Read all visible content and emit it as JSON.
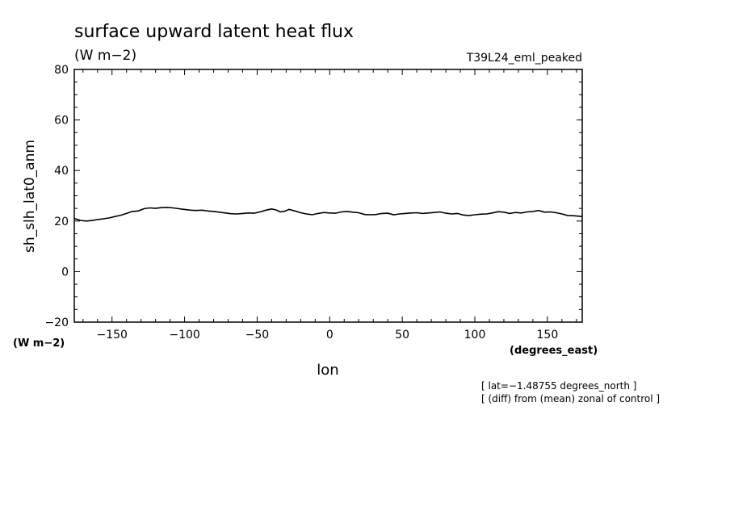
{
  "chart_data": {
    "type": "line",
    "title": "surface upward latent heat flux",
    "title_units": "(W m−2)",
    "run_label": "T39L24_eml_peaked",
    "ylabel": "sh_slh_lat0_anm",
    "y_units": "(W m−2)",
    "xlabel": "lon",
    "x_units": "(degrees_east)",
    "xlim": [
      -176,
      174
    ],
    "ylim": [
      -20,
      80
    ],
    "x_ticks": [
      -150,
      -100,
      -50,
      0,
      50,
      100,
      150
    ],
    "x_tick_labels": [
      "−150",
      "−100",
      "−50",
      "0",
      "50",
      "100",
      "150"
    ],
    "y_ticks": [
      -20,
      0,
      20,
      40,
      60,
      80
    ],
    "y_tick_labels": [
      "−20",
      "0",
      "20",
      "40",
      "60",
      "80"
    ],
    "notes": [
      "[ lat=−1.48755 degrees_north ]",
      "[ (diff) from (mean) zonal of control ]"
    ],
    "series": [
      {
        "x": [
          -176,
          -172,
          -168,
          -164,
          -160,
          -156,
          -152,
          -148,
          -144,
          -140,
          -136,
          -132,
          -128,
          -124,
          -120,
          -116,
          -112,
          -108,
          -104,
          -100,
          -96,
          -92,
          -88,
          -84,
          -80,
          -76,
          -72,
          -68,
          -64,
          -60,
          -56,
          -52,
          -48,
          -44,
          -40,
          -37,
          -34,
          -31,
          -28,
          -24,
          -20,
          -16,
          -12,
          -8,
          -4,
          0,
          4,
          8,
          12,
          16,
          20,
          24,
          28,
          32,
          36,
          40,
          44,
          48,
          52,
          56,
          60,
          64,
          68,
          72,
          76,
          80,
          84,
          88,
          92,
          96,
          100,
          104,
          108,
          112,
          116,
          120,
          124,
          128,
          132,
          136,
          140,
          144,
          148,
          152,
          156,
          160,
          164,
          168,
          174
        ],
        "y": [
          21.0,
          20.3,
          20.0,
          20.2,
          20.6,
          20.9,
          21.2,
          21.8,
          22.3,
          23.0,
          23.8,
          24.0,
          24.9,
          25.2,
          25.0,
          25.3,
          25.4,
          25.2,
          24.9,
          24.6,
          24.3,
          24.2,
          24.3,
          24.0,
          23.8,
          23.5,
          23.2,
          22.9,
          22.8,
          23.0,
          23.2,
          23.1,
          23.6,
          24.3,
          24.8,
          24.4,
          23.6,
          23.9,
          24.6,
          24.0,
          23.3,
          22.8,
          22.5,
          23.0,
          23.4,
          23.2,
          23.1,
          23.6,
          23.8,
          23.5,
          23.3,
          22.6,
          22.5,
          22.6,
          23.0,
          23.1,
          22.5,
          22.8,
          23.0,
          23.2,
          23.3,
          23.0,
          23.2,
          23.4,
          23.6,
          23.1,
          22.8,
          23.0,
          22.4,
          22.2,
          22.5,
          22.7,
          22.8,
          23.2,
          23.7,
          23.5,
          23.0,
          23.4,
          23.2,
          23.6,
          23.8,
          24.2,
          23.5,
          23.6,
          23.3,
          22.8,
          22.2,
          22.1,
          21.8
        ]
      }
    ]
  }
}
